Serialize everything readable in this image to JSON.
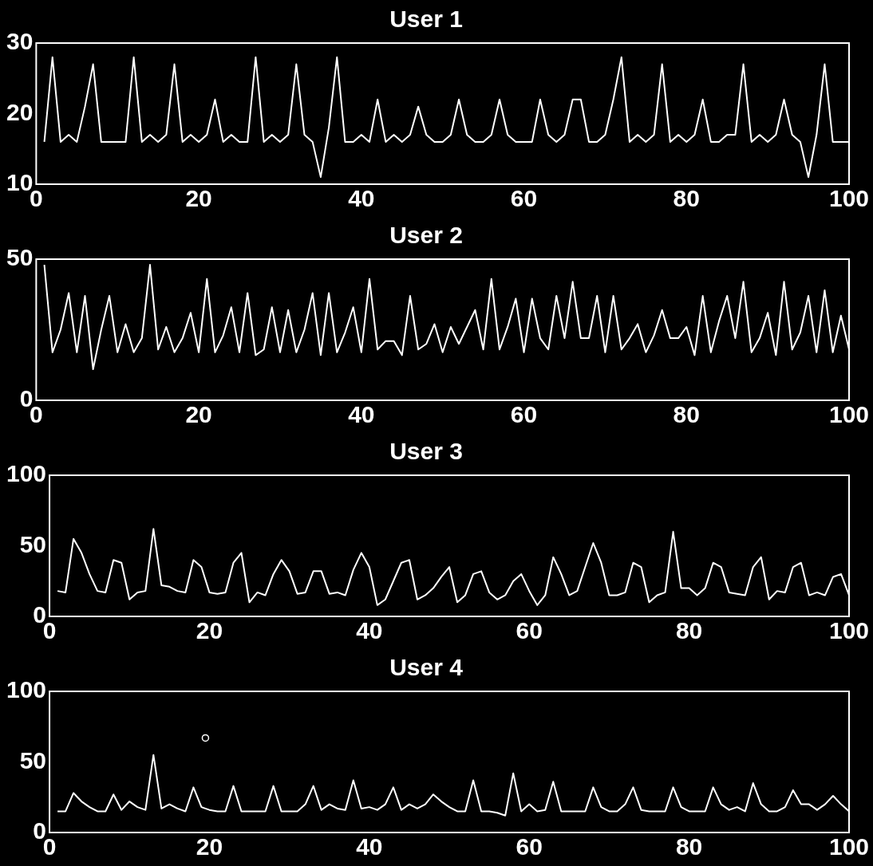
{
  "chart_data": [
    {
      "type": "line",
      "title": "User 1",
      "x": [
        1,
        2,
        3,
        4,
        5,
        6,
        7,
        8,
        9,
        10,
        11,
        12,
        13,
        14,
        15,
        16,
        17,
        18,
        19,
        20,
        21,
        22,
        23,
        24,
        25,
        26,
        27,
        28,
        29,
        30,
        31,
        32,
        33,
        34,
        35,
        36,
        37,
        38,
        39,
        40,
        41,
        42,
        43,
        44,
        45,
        46,
        47,
        48,
        49,
        50,
        51,
        52,
        53,
        54,
        55,
        56,
        57,
        58,
        59,
        60,
        61,
        62,
        63,
        64,
        65,
        66,
        67,
        68,
        69,
        70,
        71,
        72,
        73,
        74,
        75,
        76,
        77,
        78,
        79,
        80,
        81,
        82,
        83,
        84,
        85,
        86,
        87,
        88,
        89,
        90,
        91,
        92,
        93,
        94,
        95,
        96,
        97,
        98,
        99,
        100
      ],
      "values": [
        16,
        28,
        16,
        17,
        16,
        21,
        27,
        16,
        16,
        16,
        16,
        28,
        16,
        17,
        16,
        17,
        27,
        16,
        17,
        16,
        17,
        22,
        16,
        17,
        16,
        16,
        28,
        16,
        17,
        16,
        17,
        27,
        17,
        16,
        11,
        18,
        28,
        16,
        16,
        17,
        16,
        22,
        16,
        17,
        16,
        17,
        21,
        17,
        16,
        16,
        17,
        22,
        17,
        16,
        16,
        17,
        22,
        17,
        16,
        16,
        16,
        22,
        17,
        16,
        17,
        22,
        22,
        16,
        16,
        17,
        22,
        28,
        16,
        17,
        16,
        17,
        27,
        16,
        17,
        16,
        17,
        22,
        16,
        16,
        17,
        17,
        27,
        16,
        17,
        16,
        17,
        22,
        17,
        16,
        11,
        17,
        27,
        16,
        16,
        16
      ],
      "color": "#ffffff",
      "xlim": [
        0,
        100
      ],
      "xticks": [
        0,
        20,
        40,
        60,
        80,
        100
      ],
      "ylim": [
        10,
        30
      ],
      "yticks": [
        10,
        20,
        30
      ],
      "grid": false,
      "marker": "none"
    },
    {
      "type": "line",
      "title": "User 2",
      "x": [
        1,
        2,
        3,
        4,
        5,
        6,
        7,
        8,
        9,
        10,
        11,
        12,
        13,
        14,
        15,
        16,
        17,
        18,
        19,
        20,
        21,
        22,
        23,
        24,
        25,
        26,
        27,
        28,
        29,
        30,
        31,
        32,
        33,
        34,
        35,
        36,
        37,
        38,
        39,
        40,
        41,
        42,
        43,
        44,
        45,
        46,
        47,
        48,
        49,
        50,
        51,
        52,
        53,
        54,
        55,
        56,
        57,
        58,
        59,
        60,
        61,
        62,
        63,
        64,
        65,
        66,
        67,
        68,
        69,
        70,
        71,
        72,
        73,
        74,
        75,
        76,
        77,
        78,
        79,
        80,
        81,
        82,
        83,
        84,
        85,
        86,
        87,
        88,
        89,
        90,
        91,
        92,
        93,
        94,
        95,
        96,
        97,
        98,
        99,
        100
      ],
      "values": [
        48,
        17,
        25,
        38,
        17,
        37,
        11,
        25,
        37,
        17,
        27,
        17,
        22,
        48,
        18,
        26,
        17,
        22,
        31,
        17,
        43,
        17,
        23,
        33,
        17,
        38,
        16,
        18,
        33,
        17,
        32,
        17,
        25,
        38,
        16,
        38,
        17,
        24,
        33,
        17,
        43,
        18,
        21,
        21,
        16,
        37,
        18,
        20,
        27,
        17,
        26,
        20,
        26,
        32,
        18,
        43,
        18,
        26,
        36,
        17,
        36,
        22,
        18,
        37,
        22,
        42,
        22,
        22,
        37,
        17,
        37,
        18,
        22,
        27,
        17,
        23,
        32,
        22,
        22,
        26,
        16,
        37,
        17,
        28,
        37,
        22,
        42,
        17,
        22,
        31,
        16,
        42,
        18,
        24,
        37,
        17,
        39,
        17,
        30,
        18
      ],
      "color": "#ffffff",
      "xlim": [
        0,
        100
      ],
      "xticks": [
        0,
        20,
        40,
        60,
        80,
        100
      ],
      "ylim": [
        0,
        50
      ],
      "yticks": [
        0,
        50
      ],
      "grid": false,
      "marker": "none"
    },
    {
      "type": "line",
      "title": "User 3",
      "x": [
        1,
        2,
        3,
        4,
        5,
        6,
        7,
        8,
        9,
        10,
        11,
        12,
        13,
        14,
        15,
        16,
        17,
        18,
        19,
        20,
        21,
        22,
        23,
        24,
        25,
        26,
        27,
        28,
        29,
        30,
        31,
        32,
        33,
        34,
        35,
        36,
        37,
        38,
        39,
        40,
        41,
        42,
        43,
        44,
        45,
        46,
        47,
        48,
        49,
        50,
        51,
        52,
        53,
        54,
        55,
        56,
        57,
        58,
        59,
        60,
        61,
        62,
        63,
        64,
        65,
        66,
        67,
        68,
        69,
        70,
        71,
        72,
        73,
        74,
        75,
        76,
        77,
        78,
        79,
        80,
        81,
        82,
        83,
        84,
        85,
        86,
        87,
        88,
        89,
        90,
        91,
        92,
        93,
        94,
        95,
        96,
        97,
        98,
        99,
        100
      ],
      "values": [
        18,
        17,
        55,
        45,
        30,
        18,
        17,
        40,
        38,
        12,
        17,
        18,
        62,
        22,
        21,
        18,
        17,
        40,
        35,
        17,
        16,
        17,
        38,
        45,
        10,
        17,
        15,
        30,
        40,
        32,
        16,
        17,
        32,
        32,
        16,
        17,
        15,
        33,
        45,
        35,
        8,
        12,
        25,
        38,
        40,
        12,
        15,
        20,
        28,
        35,
        10,
        15,
        30,
        32,
        17,
        12,
        15,
        25,
        30,
        18,
        8,
        15,
        42,
        30,
        15,
        18,
        35,
        52,
        38,
        15,
        15,
        17,
        38,
        35,
        10,
        15,
        17,
        60,
        20,
        20,
        15,
        20,
        38,
        35,
        17,
        16,
        15,
        35,
        42,
        12,
        18,
        17,
        35,
        38,
        15,
        17,
        15,
        28,
        30,
        15
      ],
      "color": "#ffffff",
      "xlim": [
        0,
        100
      ],
      "xticks": [
        0,
        20,
        40,
        60,
        80,
        100
      ],
      "ylim": [
        0,
        100
      ],
      "yticks": [
        0,
        50,
        100
      ],
      "grid": false,
      "marker": "none"
    },
    {
      "type": "line",
      "title": "User 4",
      "x": [
        1,
        2,
        3,
        4,
        5,
        6,
        7,
        8,
        9,
        10,
        11,
        12,
        13,
        14,
        15,
        16,
        17,
        18,
        19,
        20,
        21,
        22,
        23,
        24,
        25,
        26,
        27,
        28,
        29,
        30,
        31,
        32,
        33,
        34,
        35,
        36,
        37,
        38,
        39,
        40,
        41,
        42,
        43,
        44,
        45,
        46,
        47,
        48,
        49,
        50,
        51,
        52,
        53,
        54,
        55,
        56,
        57,
        58,
        59,
        60,
        61,
        62,
        63,
        64,
        65,
        66,
        67,
        68,
        69,
        70,
        71,
        72,
        73,
        74,
        75,
        76,
        77,
        78,
        79,
        80,
        81,
        82,
        83,
        84,
        85,
        86,
        87,
        88,
        89,
        90,
        91,
        92,
        93,
        94,
        95,
        96,
        97,
        98,
        99,
        100
      ],
      "series": [
        {
          "color": "#ffffff",
          "values": [
            15,
            15,
            28,
            22,
            18,
            15,
            15,
            27,
            16,
            22,
            18,
            16,
            55,
            17,
            20,
            17,
            15,
            32,
            18,
            16,
            15,
            15,
            33,
            15,
            15,
            15,
            15,
            33,
            15,
            15,
            15,
            20,
            33,
            16,
            20,
            17,
            16,
            37,
            17,
            18,
            16,
            20,
            32,
            16,
            20,
            17,
            20,
            27,
            22,
            18,
            15,
            15,
            37,
            15,
            15,
            14,
            12,
            42,
            15,
            20,
            15,
            16,
            36,
            15,
            15,
            15,
            15,
            32,
            18,
            15,
            15,
            20,
            32,
            16,
            15,
            15,
            15,
            32,
            18,
            15,
            15,
            15,
            32,
            20,
            16,
            18,
            15,
            35,
            20,
            15,
            15,
            18,
            30,
            20,
            20,
            16,
            20,
            26,
            20,
            15
          ]
        },
        {
          "type": "scatter",
          "marker": "circle",
          "color": "#ffffff",
          "x": [
            19.5
          ],
          "values": [
            67
          ]
        }
      ],
      "xlim": [
        0,
        100
      ],
      "xticks": [
        0,
        20,
        40,
        60,
        80,
        100
      ],
      "ylim": [
        0,
        100
      ],
      "yticks": [
        0,
        50,
        100
      ],
      "grid": false,
      "marker": "none"
    }
  ]
}
